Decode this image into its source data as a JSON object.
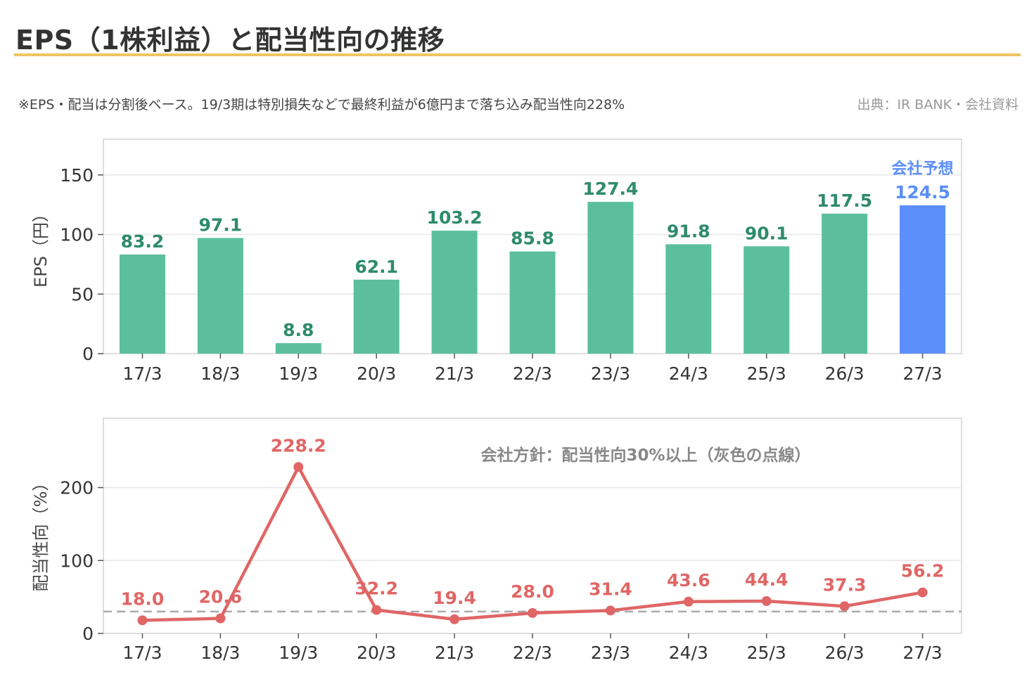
{
  "header": {
    "title": "EPS（1株利益）と配当性向の推移",
    "note": "※EPS・配当は分割後ベース。19/3期は特別損失などで最終利益が6億円まで落ち込み配当性向228%",
    "source": "出典：IR BANK・会社資料"
  },
  "colors": {
    "accent_rule": "#f0c463",
    "bar_actual": "#5bbf9d",
    "bar_forecast": "#5b8ff9",
    "label_actual": "#2e8b6a",
    "line": "#e06666",
    "policy_line": "#aaaaaa",
    "grid": "#e6e6e6"
  },
  "chart_data": [
    {
      "type": "bar",
      "categories": [
        "17/3",
        "18/3",
        "19/3",
        "20/3",
        "21/3",
        "22/3",
        "23/3",
        "24/3",
        "25/3",
        "26/3",
        "27/3"
      ],
      "values": [
        83.2,
        97.1,
        8.8,
        62.1,
        103.2,
        85.8,
        127.4,
        91.8,
        90.1,
        117.5,
        124.5
      ],
      "labels": [
        "83.2",
        "97.1",
        "8.8",
        "62.1",
        "103.2",
        "85.8",
        "127.4",
        "91.8",
        "90.1",
        "117.5",
        "124.5"
      ],
      "forecast_index": 10,
      "forecast_label": "会社予想",
      "ylabel": "EPS（円）",
      "yticks": [
        0,
        50,
        100,
        150
      ],
      "ylim": [
        0,
        180
      ],
      "grid": true
    },
    {
      "type": "line",
      "categories": [
        "17/3",
        "18/3",
        "19/3",
        "20/3",
        "21/3",
        "22/3",
        "23/3",
        "24/3",
        "25/3",
        "26/3",
        "27/3"
      ],
      "values": [
        18.0,
        20.6,
        228.2,
        32.2,
        19.4,
        28.0,
        31.4,
        43.6,
        44.4,
        37.3,
        56.2
      ],
      "labels": [
        "18.0",
        "20.6",
        "228.2",
        "32.2",
        "19.4",
        "28.0",
        "31.4",
        "43.6",
        "44.4",
        "37.3",
        "56.2"
      ],
      "ylabel": "配当性向（%）",
      "yticks": [
        0,
        100,
        200
      ],
      "ylim": [
        0,
        295
      ],
      "reference_line": 30,
      "annotation": "会社方針：配当性向30%以上（灰色の点線）",
      "grid": true
    }
  ]
}
